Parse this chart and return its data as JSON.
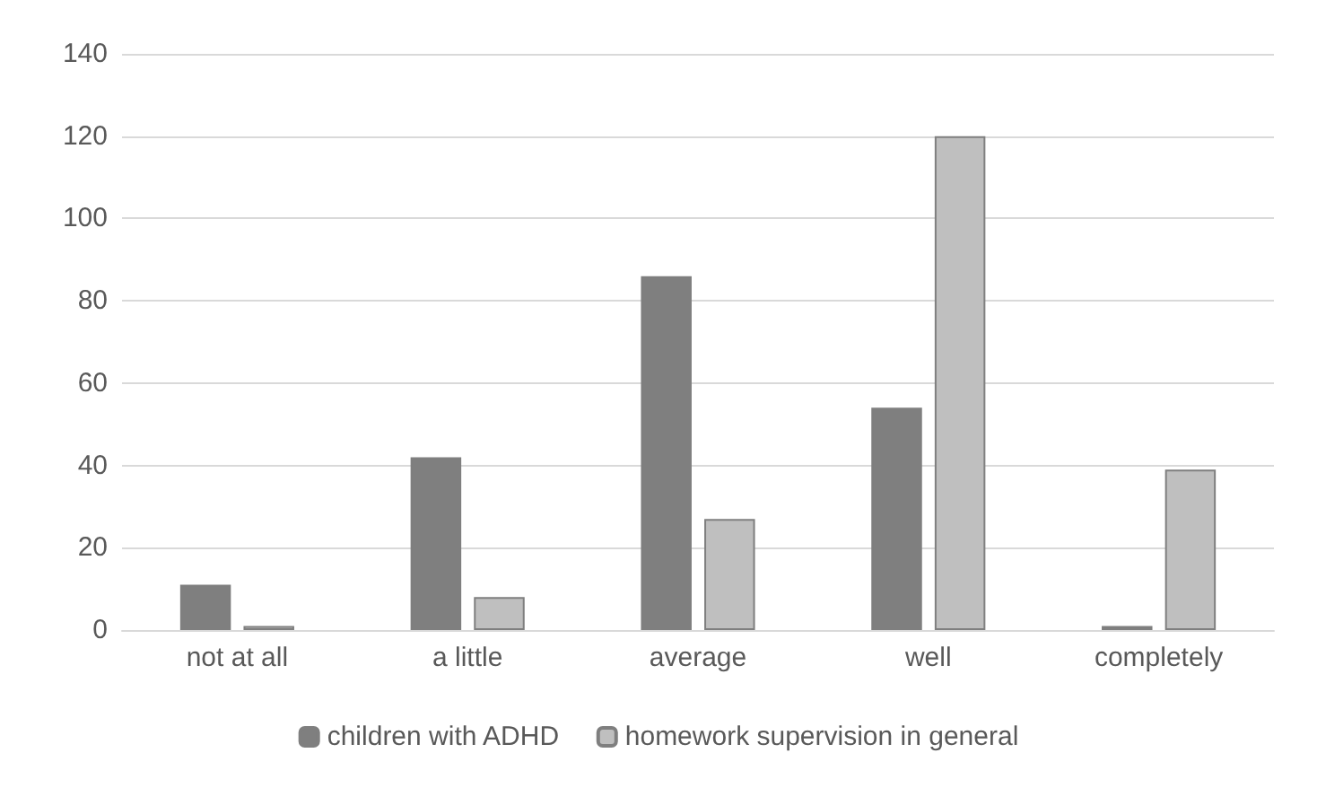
{
  "chart_data": {
    "type": "bar",
    "categories": [
      "not at all",
      "a little",
      "average",
      "well",
      "completely"
    ],
    "series": [
      {
        "name": "children with ADHD",
        "color": "#7f7f7f",
        "values": [
          11,
          42,
          86,
          54,
          1
        ]
      },
      {
        "name": "homework supervision in general",
        "color": "#bfbfbf",
        "values": [
          1,
          8,
          27,
          120,
          39
        ]
      }
    ],
    "ylim": [
      0,
      140
    ],
    "yticks": [
      0,
      20,
      40,
      60,
      80,
      100,
      120,
      140
    ],
    "grid": "y",
    "legend": "bottom"
  }
}
